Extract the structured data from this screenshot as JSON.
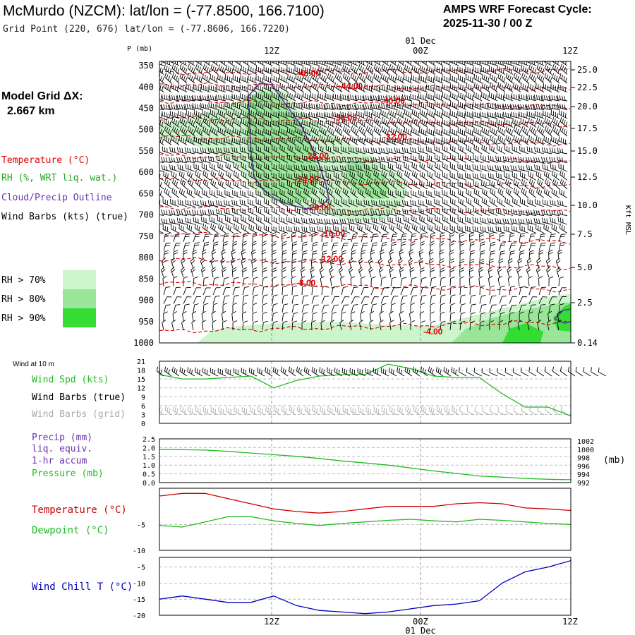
{
  "header": {
    "title": "McMurdo (NZCM):  lat/lon = (-77.8500, 166.7100)",
    "subtitle": "Grid Point (220, 676) lat/lon = (-77.8606, 166.7220)",
    "cycle_line1": "AMPS WRF Forecast Cycle:",
    "cycle_line2": "2025-11-30 / 00  Z"
  },
  "time_axis": {
    "ticks": [
      "12Z",
      "00Z",
      "12Z"
    ],
    "date_label": "01 Dec"
  },
  "sidebar": {
    "grid_label": "Model Grid ΔX:",
    "grid_value": "2.667 km",
    "legend_temperature": "Temperature (°C)",
    "legend_rh": "RH (%, WRT liq. wat.)",
    "legend_cloud": "Cloud/Precip Outline",
    "legend_wind": "Wind Barbs (kts) (true)",
    "rh70": "RH > 70%",
    "rh80": "RH > 80%",
    "rh90": "RH > 90%"
  },
  "colors": {
    "temperature": "#e00000",
    "rh70": "#ccf5cc",
    "rh80": "#99e699",
    "rh90": "#33dd33",
    "cloud": "#6633aa",
    "panel_green": "#22bb22",
    "panel_red": "#cc0000",
    "panel_blue": "#0000bb",
    "gray_barb": "#aaaaaa"
  },
  "chart_data": [
    {
      "type": "time-height cross section",
      "ylabel": "P (mb)",
      "y2label": "Kft MSL",
      "pressure_ticks": [
        350,
        400,
        450,
        500,
        550,
        600,
        650,
        700,
        750,
        800,
        850,
        900,
        950,
        1000
      ],
      "height_ticks": [
        "25.0",
        "22.5",
        "20.0",
        "17.5",
        "15.0",
        "12.5",
        "10.0",
        "7.5",
        "5.0",
        "2.5",
        "0.14"
      ],
      "isotherm_labels": [
        "-48.00",
        "-44.00",
        "-40.00",
        "-36.00",
        "-32.00",
        "-28.00",
        "-24.00",
        "-20.00",
        "-16.00",
        "-12.00",
        "-8.00",
        "-4.00"
      ]
    },
    {
      "type": "line",
      "title": "Wind at 10 m",
      "series_labels": [
        "Wind Spd (kts)",
        "Wind Barbs (true)",
        "Wind Barbs (grid)"
      ],
      "y_ticks": [
        0,
        3,
        6,
        9,
        12,
        15,
        18,
        21
      ],
      "ylim": [
        0,
        21
      ],
      "x_hours": [
        0,
        2,
        4,
        6,
        8,
        10,
        12,
        14,
        16,
        18,
        20,
        22,
        24,
        26,
        28,
        30,
        32,
        34,
        36
      ],
      "values": [
        16.5,
        15,
        15,
        15.5,
        16,
        12,
        14.5,
        16,
        16.5,
        16.5,
        20,
        18.5,
        16,
        15.5,
        15.5,
        10,
        5.5,
        5.5,
        2.5
      ]
    },
    {
      "type": "line",
      "series_labels": [
        "Precip (mm)",
        "liq. equiv.",
        "1-hr accum",
        "Pressure (mb)"
      ],
      "y_unit": "(mb)",
      "left_ticks": [
        "0.0",
        "0.5",
        "1.0",
        "1.5",
        "2.0",
        "2.5"
      ],
      "right_ticks": [
        "992",
        "994",
        "996",
        "998",
        "1000",
        "1002"
      ],
      "ylim_precip": [
        0,
        2.5
      ],
      "ylim_pressure": [
        992,
        1002.5
      ],
      "x_hours": [
        0,
        2,
        4,
        6,
        8,
        10,
        12,
        14,
        16,
        18,
        20,
        22,
        24,
        26,
        28,
        30,
        32,
        34,
        36
      ],
      "pressure": [
        1000.0,
        999.9,
        999.8,
        999.5,
        999.1,
        998.7,
        998.3,
        997.8,
        997.2,
        996.7,
        996.2,
        995.5,
        994.8,
        994.2,
        993.6,
        993.3,
        993.0,
        992.8,
        992.7
      ]
    },
    {
      "type": "line",
      "series_labels": [
        "Temperature (°C)",
        "Dewpoint (°C)"
      ],
      "y_ticks": [
        -10,
        -5
      ],
      "ylim": [
        -10,
        2
      ],
      "x_hours": [
        0,
        2,
        4,
        6,
        8,
        10,
        12,
        14,
        16,
        18,
        20,
        22,
        24,
        26,
        28,
        30,
        32,
        34,
        36
      ],
      "temperature": [
        0.5,
        1.0,
        1.0,
        0.0,
        -1.0,
        -2.0,
        -2.5,
        -2.8,
        -2.5,
        -2.0,
        -1.5,
        -1.5,
        -1.5,
        -1.0,
        -0.8,
        -1.0,
        -1.8,
        -2.0,
        -2.3
      ],
      "dewpoint": [
        -5.2,
        -5.5,
        -4.5,
        -3.5,
        -3.5,
        -4.3,
        -4.8,
        -5.2,
        -4.8,
        -4.5,
        -4.2,
        -4.0,
        -4.3,
        -4.5,
        -4.0,
        -4.2,
        -4.5,
        -4.8,
        -5.0
      ]
    },
    {
      "type": "line",
      "series_labels": [
        "Wind Chill T (°C)"
      ],
      "y_ticks": [
        -20,
        -15,
        -10,
        -5
      ],
      "ylim": [
        -20,
        -2
      ],
      "x_hours": [
        0,
        2,
        4,
        6,
        8,
        10,
        12,
        14,
        16,
        18,
        20,
        22,
        24,
        26,
        28,
        30,
        32,
        34,
        36
      ],
      "values": [
        -15,
        -14,
        -15,
        -16,
        -16,
        -14,
        -17,
        -18.5,
        -19,
        -19.5,
        -19,
        -18,
        -17,
        -16.5,
        -15.5,
        -10,
        -6.5,
        -5,
        -3
      ]
    }
  ]
}
